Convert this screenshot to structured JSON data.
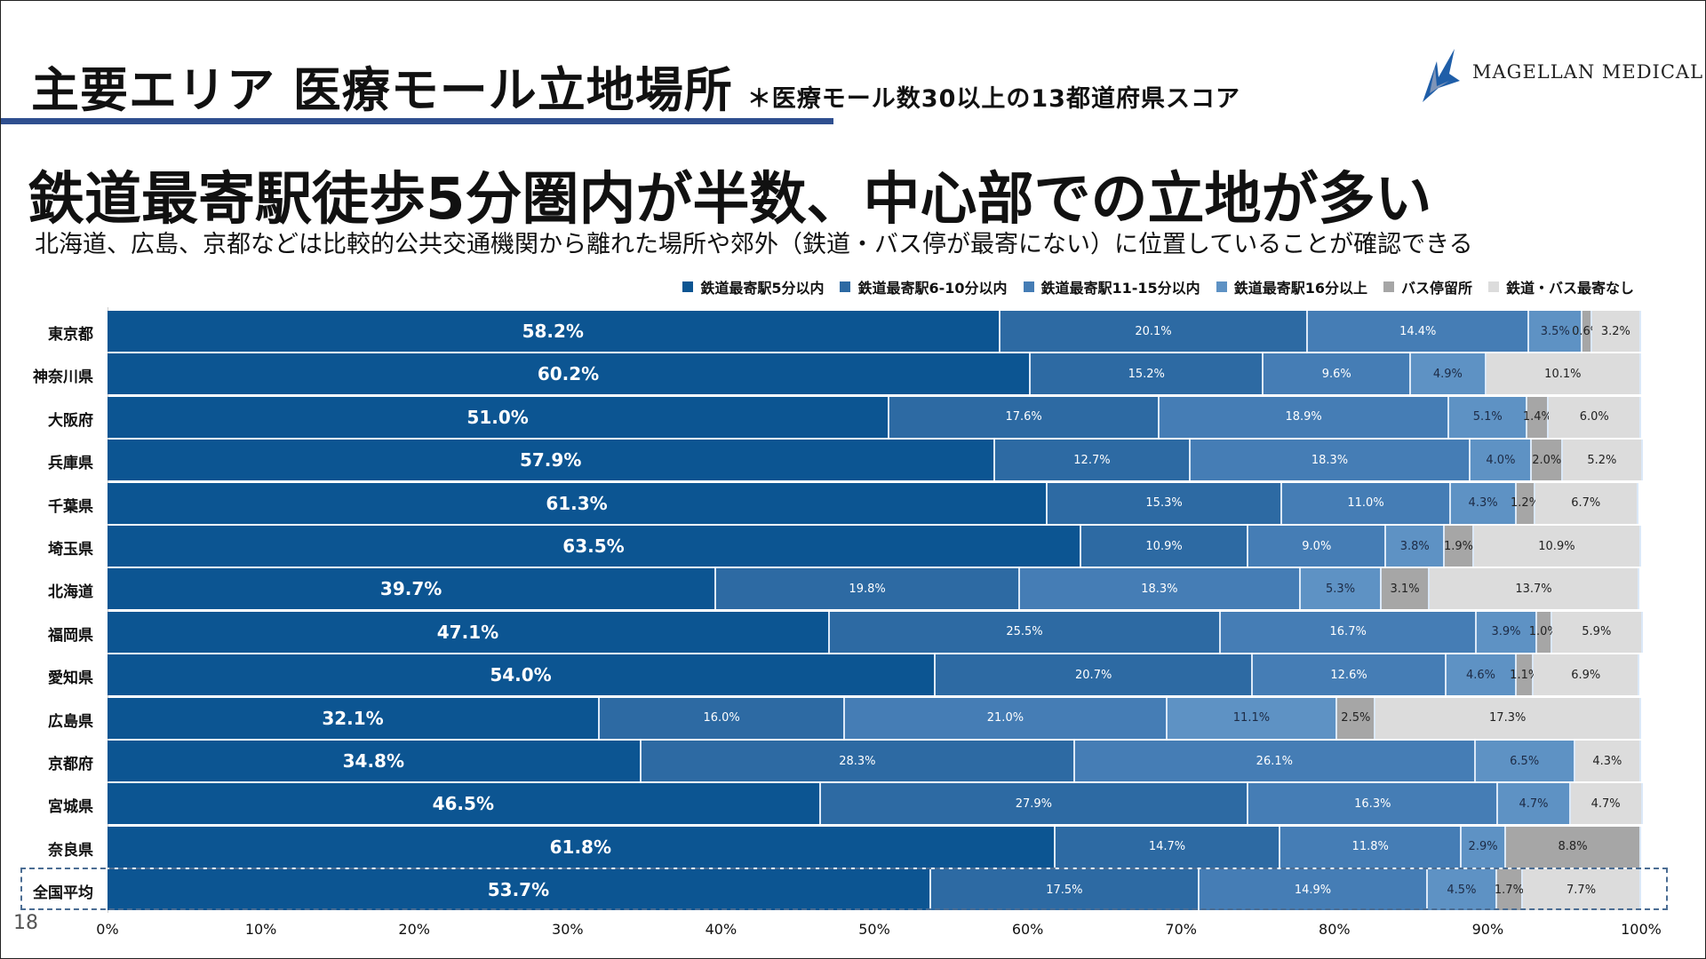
{
  "header": {
    "title": "主要エリア 医療モール立地場所",
    "note": "＊医療モール数30以上の13都道府県スコア",
    "logo_text": "MAGELLAN MEDICAL",
    "headline": "鉄道最寄駅徒歩5分圏内が半数、中心部での立地が多い",
    "subtitle": "北海道、広島、京都などは比較的公共交通機関から離れた場所や郊外（鉄道・バス停が最寄にない）に位置していることが確認できる"
  },
  "page_number": "18",
  "colors": {
    "accent": "#2f4f8f",
    "s1": "#0c5592",
    "s2": "#2d6aa3",
    "s3": "#457db5",
    "s4": "#5e92c4",
    "s5": "#a6a6a6",
    "s6": "#dcdcdc"
  },
  "chart_data": {
    "type": "bar",
    "orientation": "horizontal-stacked-100",
    "categories": [
      "東京都",
      "神奈川県",
      "大阪府",
      "兵庫県",
      "千葉県",
      "埼玉県",
      "北海道",
      "福岡県",
      "愛知県",
      "広島県",
      "京都府",
      "宮城県",
      "奈良県",
      "全国平均"
    ],
    "series": [
      {
        "name": "鉄道最寄駅5分以内",
        "color": "#0c5592",
        "values": [
          58.2,
          60.2,
          51.0,
          57.9,
          61.3,
          63.5,
          39.7,
          47.1,
          54.0,
          32.1,
          34.8,
          46.5,
          61.8,
          53.7
        ]
      },
      {
        "name": "鉄道最寄駅6-10分以内",
        "color": "#2d6aa3",
        "values": [
          20.1,
          15.2,
          17.6,
          12.7,
          15.3,
          10.9,
          19.8,
          25.5,
          20.7,
          16.0,
          28.3,
          27.9,
          14.7,
          17.5
        ]
      },
      {
        "name": "鉄道最寄駅11-15分以内",
        "color": "#457db5",
        "values": [
          14.4,
          9.6,
          18.9,
          18.3,
          11.0,
          9.0,
          18.3,
          16.7,
          12.6,
          21.0,
          26.1,
          16.3,
          11.8,
          14.9
        ]
      },
      {
        "name": "鉄道最寄駅16分以上",
        "color": "#5e92c4",
        "values": [
          3.5,
          4.9,
          5.1,
          4.0,
          4.3,
          3.8,
          5.3,
          3.9,
          4.6,
          11.1,
          6.5,
          4.7,
          2.9,
          4.5
        ]
      },
      {
        "name": "バス停留所",
        "color": "#a6a6a6",
        "values": [
          0.6,
          0,
          1.4,
          2.0,
          1.2,
          1.9,
          3.1,
          1.0,
          1.1,
          2.5,
          0,
          0,
          8.8,
          1.7
        ]
      },
      {
        "name": "鉄道・バス最寄なし",
        "color": "#dcdcdc",
        "values": [
          3.2,
          10.1,
          6.0,
          5.2,
          6.7,
          10.9,
          13.7,
          5.9,
          6.9,
          17.3,
          4.3,
          4.7,
          0,
          7.7
        ]
      }
    ],
    "xlim": [
      0,
      100
    ],
    "x_ticks": [
      "0%",
      "10%",
      "20%",
      "30%",
      "40%",
      "50%",
      "60%",
      "70%",
      "80%",
      "90%",
      "100%"
    ],
    "data_labels": true,
    "legend_position": "top-right",
    "highlighted_category": "全国平均"
  }
}
